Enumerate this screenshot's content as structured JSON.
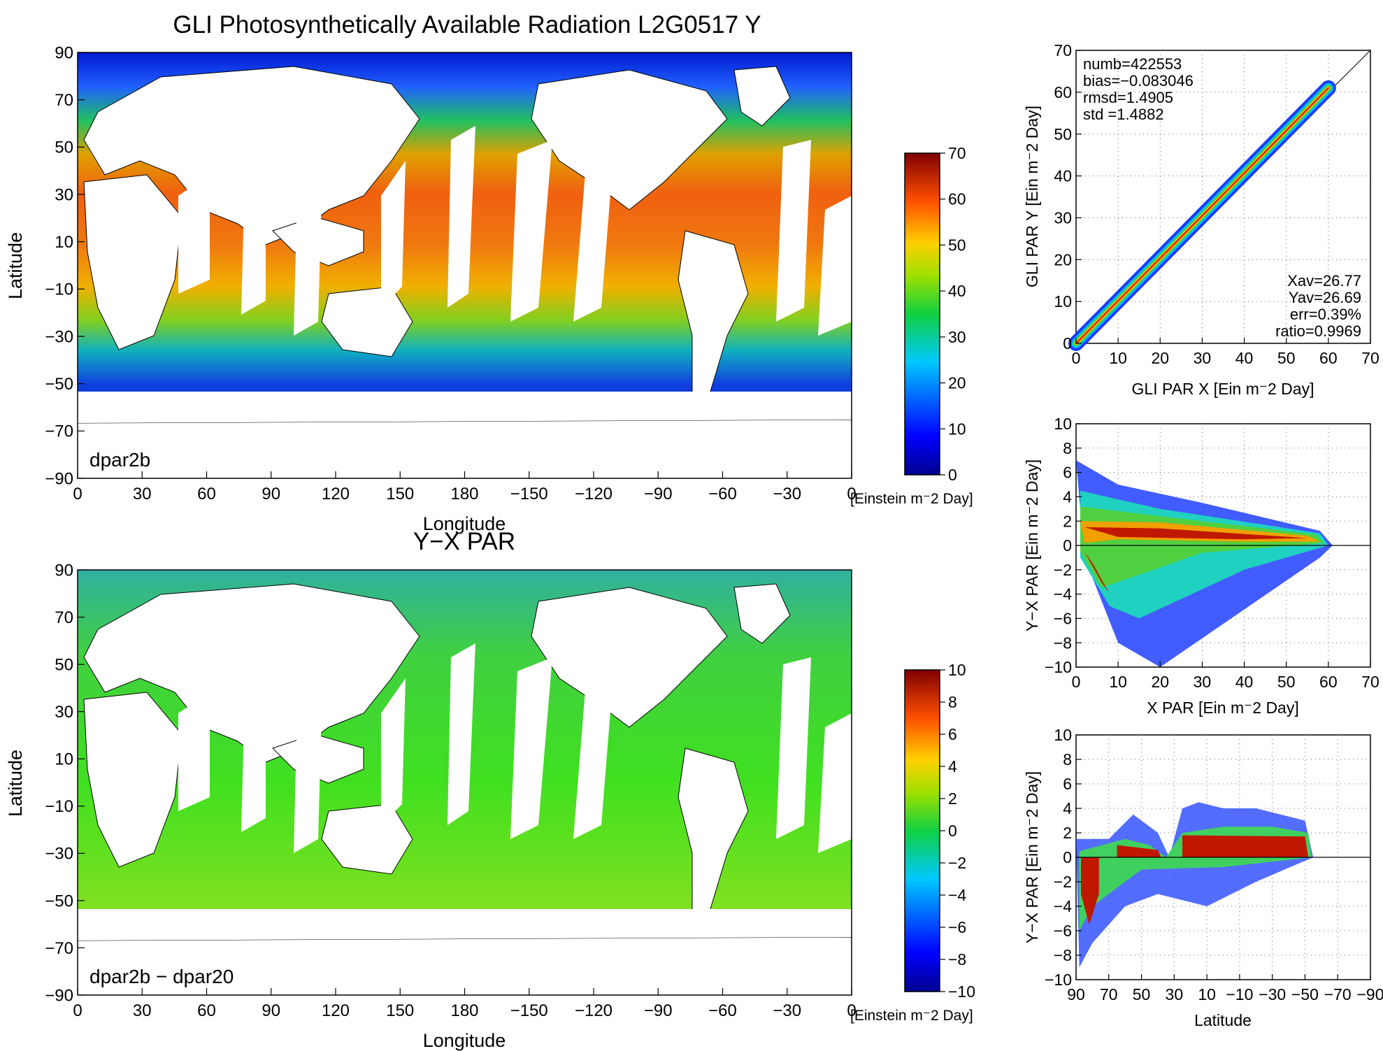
{
  "chart_data": [
    {
      "type": "heatmap",
      "title": "GLI Photosynthetically Available Radiation L2G0517 Y",
      "xlabel": "Longitude",
      "ylabel": "Latitude",
      "x_ticks": [
        "0",
        "30",
        "60",
        "90",
        "120",
        "150",
        "180",
        "−150",
        "−120",
        "−90",
        "−60",
        "−30",
        "0"
      ],
      "y_ticks": [
        "90",
        "70",
        "50",
        "30",
        "10",
        "−10",
        "−30",
        "−50",
        "−70",
        "−90"
      ],
      "xlim": [
        0,
        360
      ],
      "ylim": [
        -90,
        90
      ],
      "annotation": "dpar2b",
      "colorbar": {
        "ticks": [
          "0",
          "10",
          "20",
          "30",
          "40",
          "50",
          "60",
          "70"
        ],
        "range": [
          0,
          70
        ],
        "label": "[Einstein m⁻2 Day]"
      }
    },
    {
      "type": "heatmap",
      "title": "Y−X PAR",
      "xlabel": "Longitude",
      "ylabel": "Latitude",
      "x_ticks": [
        "0",
        "30",
        "60",
        "90",
        "120",
        "150",
        "180",
        "−150",
        "−120",
        "−90",
        "−60",
        "−30",
        "0"
      ],
      "y_ticks": [
        "90",
        "70",
        "50",
        "30",
        "10",
        "−10",
        "−30",
        "−50",
        "−70",
        "−90"
      ],
      "xlim": [
        0,
        360
      ],
      "ylim": [
        -90,
        90
      ],
      "annotation": "dpar2b − dpar20",
      "colorbar": {
        "ticks": [
          "−10",
          "−8",
          "−6",
          "−4",
          "−2",
          "0",
          "2",
          "4",
          "6",
          "8",
          "10"
        ],
        "range": [
          -10,
          10
        ],
        "label": "[Einstein m⁻2 Day]"
      }
    },
    {
      "type": "scatter",
      "xlabel": "GLI PAR X [Ein m⁻2 Day]",
      "ylabel": "GLI PAR Y [Ein m⁻2 Day]",
      "xlim": [
        0,
        70
      ],
      "ylim": [
        0,
        70
      ],
      "x_ticks": [
        "0",
        "10",
        "20",
        "30",
        "40",
        "50",
        "60",
        "70"
      ],
      "y_ticks": [
        "0",
        "10",
        "20",
        "30",
        "40",
        "50",
        "60",
        "70"
      ],
      "grid": true,
      "stats_top_left": [
        "numb=422553",
        "bias=−0.083046",
        "rmsd=1.4905",
        "std =1.4882"
      ],
      "stats_bottom_right": [
        "Xav=26.77",
        "Yav=26.69",
        "err=0.39%",
        "ratio=0.9969"
      ],
      "density_ridge": {
        "x": [
          0,
          60
        ],
        "y": [
          0,
          61
        ]
      }
    },
    {
      "type": "scatter",
      "xlabel": "X PAR [Ein m⁻2 Day]",
      "ylabel": "Y−X PAR [Ein m⁻2 Day]",
      "xlim": [
        0,
        70
      ],
      "ylim": [
        -10,
        10
      ],
      "x_ticks": [
        "0",
        "10",
        "20",
        "30",
        "40",
        "50",
        "60",
        "70"
      ],
      "y_ticks": [
        "−10",
        "−8",
        "−6",
        "−4",
        "−2",
        "0",
        "2",
        "4",
        "6",
        "8",
        "10"
      ],
      "grid": true,
      "reference_line_y": 0
    },
    {
      "type": "scatter",
      "xlabel": "Latitude",
      "ylabel": "Y−X PAR [Ein m⁻2 Day]",
      "xlim": [
        90,
        -90
      ],
      "ylim": [
        -10,
        10
      ],
      "x_ticks": [
        "90",
        "70",
        "50",
        "30",
        "10",
        "−10",
        "−30",
        "−50",
        "−70",
        "−90"
      ],
      "y_ticks": [
        "−10",
        "−8",
        "−6",
        "−4",
        "−2",
        "0",
        "2",
        "4",
        "6",
        "8",
        "10"
      ],
      "grid": true,
      "reference_line_y": 0
    }
  ]
}
